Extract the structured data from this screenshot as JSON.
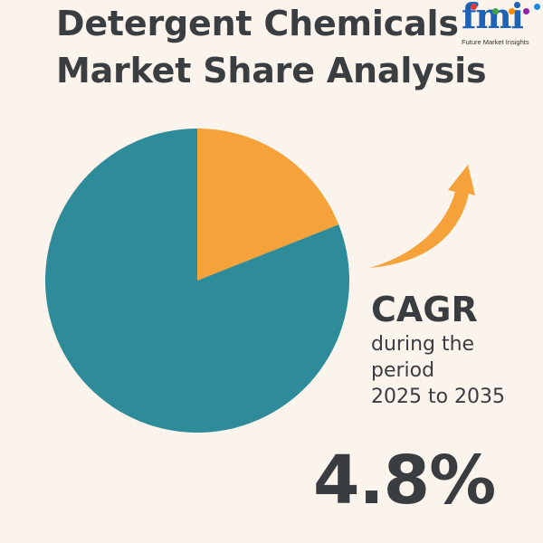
{
  "header": {
    "title_line1": "Detergent Chemicals",
    "title_line2": "Market Share Analysis"
  },
  "logo": {
    "word": "fmi",
    "tagline": "Future Market Insights",
    "colors": [
      "#e53935",
      "#43a047",
      "#fb8c00",
      "#8e24aa",
      "#1e88e5"
    ]
  },
  "chart_data": {
    "type": "pie",
    "title": "",
    "slices": [
      {
        "label": "",
        "value": 19,
        "color": "#f5a23a"
      },
      {
        "label": "",
        "value": 81,
        "color": "#2e8b9a"
      }
    ]
  },
  "cagr": {
    "label": "CAGR",
    "line1": "during the",
    "line2": "period",
    "line3": "2025 to 2035",
    "value": "4.8%"
  },
  "colors": {
    "background": "#fbf4ec",
    "arrow": "#f5a23a",
    "text": "#3a3d40",
    "brand": "#1f63b8"
  }
}
